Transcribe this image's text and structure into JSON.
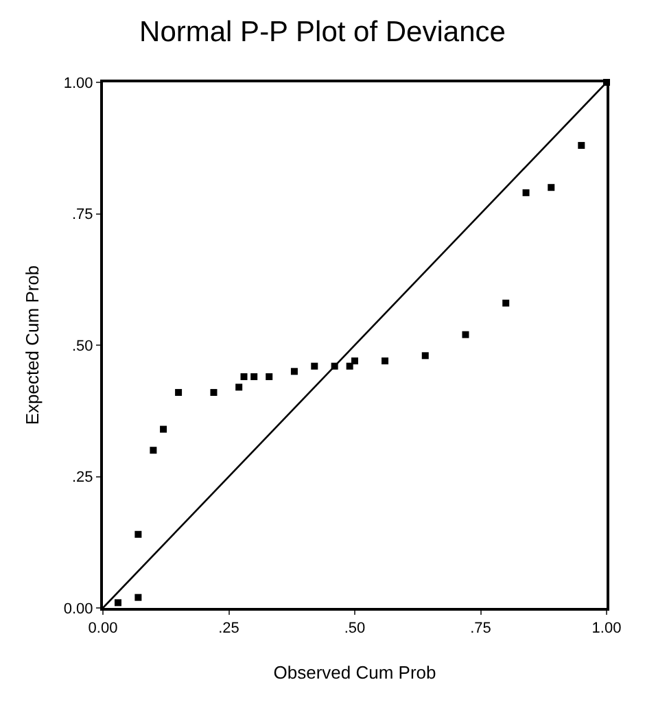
{
  "chart_data": {
    "type": "scatter",
    "title": "Normal P-P Plot of Deviance",
    "xlabel": "Observed Cum Prob",
    "ylabel": "Expected Cum Prob",
    "xlim": [
      0,
      1
    ],
    "ylim": [
      0,
      1
    ],
    "xticks": [
      {
        "value": 0,
        "label": "0.00"
      },
      {
        "value": 0.25,
        "label": ".25"
      },
      {
        "value": 0.5,
        "label": ".50"
      },
      {
        "value": 0.75,
        "label": ".75"
      },
      {
        "value": 1,
        "label": "1.00"
      }
    ],
    "yticks": [
      {
        "value": 0,
        "label": "0.00"
      },
      {
        "value": 0.25,
        "label": ".25"
      },
      {
        "value": 0.5,
        "label": ".50"
      },
      {
        "value": 0.75,
        "label": ".75"
      },
      {
        "value": 1,
        "label": "1.00"
      }
    ],
    "grid": false,
    "legend": false,
    "series": [
      {
        "marker": "square",
        "color": "#000000",
        "x": [
          0.03,
          0.07,
          0.07,
          0.1,
          0.12,
          0.15,
          0.22,
          0.27,
          0.28,
          0.3,
          0.33,
          0.38,
          0.42,
          0.46,
          0.49,
          0.5,
          0.56,
          0.64,
          0.72,
          0.8,
          0.84,
          0.89,
          0.95,
          1.0
        ],
        "values": [
          0.01,
          0.02,
          0.14,
          0.3,
          0.34,
          0.41,
          0.41,
          0.42,
          0.44,
          0.44,
          0.44,
          0.45,
          0.46,
          0.46,
          0.46,
          0.47,
          0.47,
          0.48,
          0.52,
          0.58,
          0.79,
          0.8,
          0.88,
          1.0
        ]
      },
      {
        "type": "line",
        "marker": "none",
        "color": "#000000",
        "x": [
          0,
          1
        ],
        "values": [
          0,
          1
        ]
      }
    ]
  }
}
